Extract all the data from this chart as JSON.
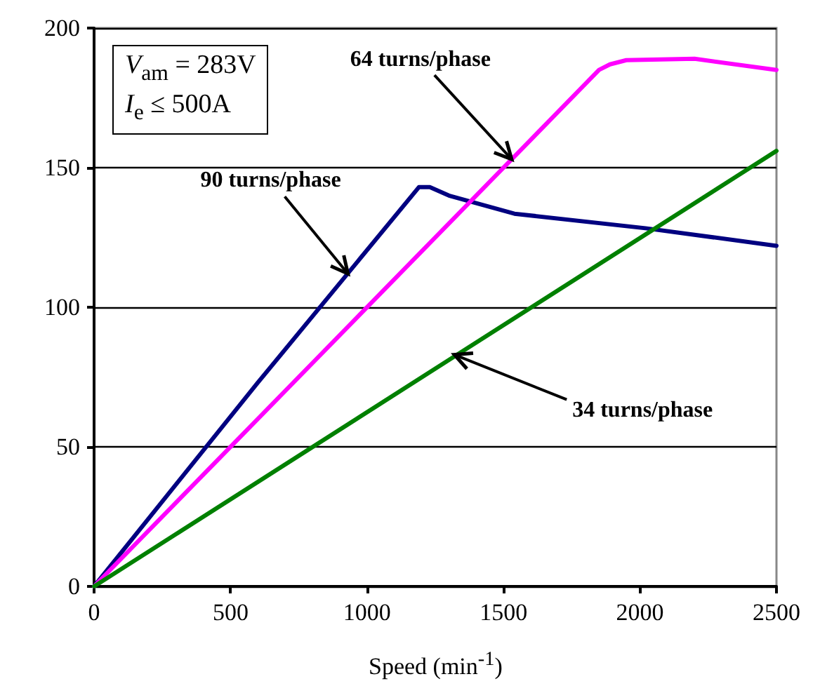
{
  "chart_data": {
    "type": "line",
    "xlabel": "Speed (min$^{-1}$)",
    "xlim": [
      0,
      2500
    ],
    "xticks": [
      0,
      500,
      1000,
      1500,
      2000,
      2500
    ],
    "ylim": [
      0,
      200
    ],
    "yticks": [
      0,
      50,
      100,
      150,
      200
    ],
    "grid": "y",
    "marker": "none",
    "line_style": "solid",
    "series": [
      {
        "color": "#000080",
        "x": [
          0,
          600,
          1190,
          1230,
          1300,
          1540,
          2020,
          2500
        ],
        "values": [
          0,
          73,
          143,
          143,
          140,
          133.5,
          128.3,
          122
        ]
      },
      {
        "color": "#ff00ff",
        "x": [
          0,
          1850,
          1890,
          1950,
          2200,
          2500
        ],
        "values": [
          0,
          185,
          187,
          188.5,
          189,
          185
        ]
      },
      {
        "color": "#008000",
        "x": [
          0,
          2500
        ],
        "values": [
          0,
          156
        ]
      }
    ],
    "annotations": [
      "V$_{am}$ = 283V",
      "I$_{e}$ ≤ 500A",
      {
        "text": "90 turns/phase",
        "x": 930,
        "y": 112
      },
      {
        "text": "64 turns/phase",
        "x": 1530,
        "y": 153
      },
      {
        "text": "34 turns/phase",
        "x": 1320,
        "y": 83
      }
    ]
  }
}
